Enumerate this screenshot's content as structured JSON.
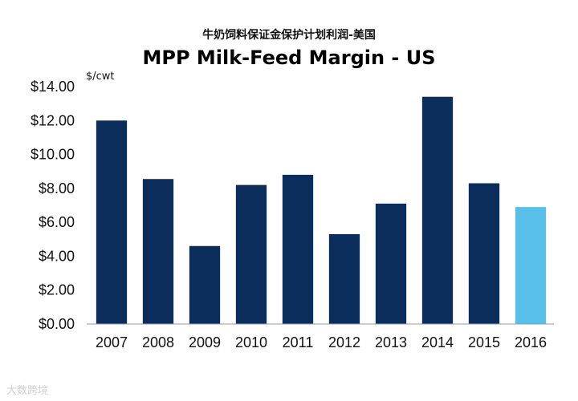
{
  "chart_data": {
    "type": "bar",
    "subtitle": "牛奶饲料保证金保护计划利润-美国",
    "title": "MPP Milk-Feed Margin - US",
    "ylabel": "$/cwt",
    "xlabel": "",
    "ylim": [
      0,
      14
    ],
    "y_ticks": [
      "$0.00",
      "$2.00",
      "$4.00",
      "$6.00",
      "$8.00",
      "$10.00",
      "$12.00",
      "$14.00"
    ],
    "categories": [
      "2007",
      "2008",
      "2009",
      "2010",
      "2011",
      "2012",
      "2013",
      "2014",
      "2015",
      "2016"
    ],
    "values": [
      12.0,
      8.55,
      4.6,
      8.2,
      8.8,
      5.3,
      7.1,
      13.4,
      8.3,
      6.9
    ],
    "colors": [
      "#0b2d5b",
      "#0b2d5b",
      "#0b2d5b",
      "#0b2d5b",
      "#0b2d5b",
      "#0b2d5b",
      "#0b2d5b",
      "#0b2d5b",
      "#0b2d5b",
      "#58bfe9"
    ],
    "grid": false,
    "legend": "none"
  },
  "watermark": "大数跨境"
}
